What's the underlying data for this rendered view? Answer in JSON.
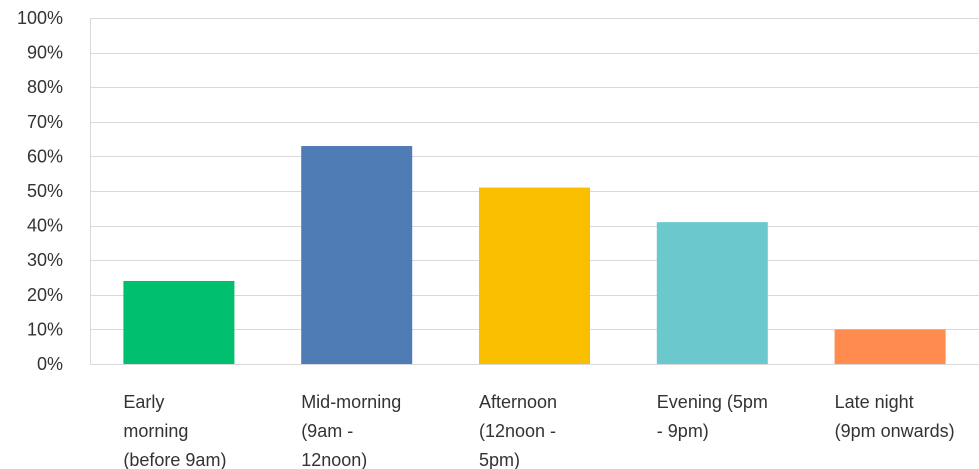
{
  "chart_data": {
    "type": "bar",
    "categories": [
      "Early morning (before 9am)",
      "Mid-morning (9am - 12noon)",
      "Afternoon (12noon - 5pm)",
      "Evening (5pm - 9pm)",
      "Late night (9pm onwards)"
    ],
    "category_label_lines": [
      [
        "Early",
        "morning",
        "(before 9am)"
      ],
      [
        "Mid-morning",
        "(9am -",
        "12noon)"
      ],
      [
        "Afternoon",
        "(12noon -",
        "5pm)"
      ],
      [
        "Evening (5pm",
        "- 9pm)"
      ],
      [
        "Late night",
        "(9pm onwards)"
      ]
    ],
    "values": [
      24,
      63,
      51,
      41,
      10
    ],
    "value_unit": "%",
    "bar_colors": [
      "#00bf6f",
      "#507cb6",
      "#f9be00",
      "#6bc8cd",
      "#ff8b4f"
    ],
    "ylim": [
      0,
      100
    ],
    "yticks": [
      0,
      10,
      20,
      30,
      40,
      50,
      60,
      70,
      80,
      90,
      100
    ],
    "ytick_labels": [
      "0%",
      "10%",
      "20%",
      "30%",
      "40%",
      "50%",
      "60%",
      "70%",
      "80%",
      "90%",
      "100%"
    ],
    "grid": true,
    "gridline_color": "#d9d9d9",
    "title": "",
    "xlabel": "",
    "ylabel": ""
  }
}
